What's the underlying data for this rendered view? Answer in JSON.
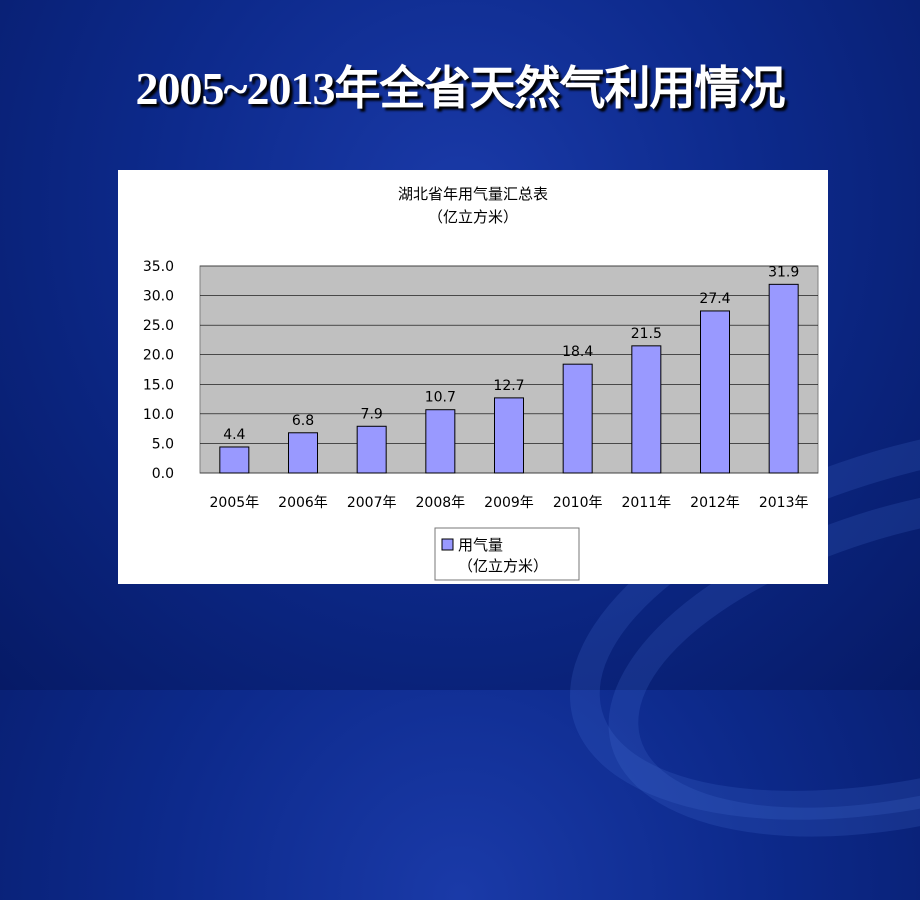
{
  "slide": {
    "title": "2005~2013年全省天然气利用情况"
  },
  "chart_data": {
    "type": "bar",
    "title": "湖北省年用气量汇总表",
    "subtitle": "（亿立方米）",
    "categories": [
      "2005年",
      "2006年",
      "2007年",
      "2008年",
      "2009年",
      "2010年",
      "2011年",
      "2012年",
      "2013年"
    ],
    "series": [
      {
        "name": "用气量",
        "name_line2": "（亿立方米）",
        "values": [
          4.4,
          6.8,
          7.9,
          10.7,
          12.7,
          18.4,
          21.5,
          27.4,
          31.9
        ],
        "color": "#9999ff"
      }
    ],
    "ylim": [
      0,
      35
    ],
    "yticks": [
      "0.0",
      "5.0",
      "10.0",
      "15.0",
      "20.0",
      "25.0",
      "30.0",
      "35.0"
    ],
    "grid": true,
    "plot_background": "#c0c0c0",
    "legend_position": "bottom"
  }
}
